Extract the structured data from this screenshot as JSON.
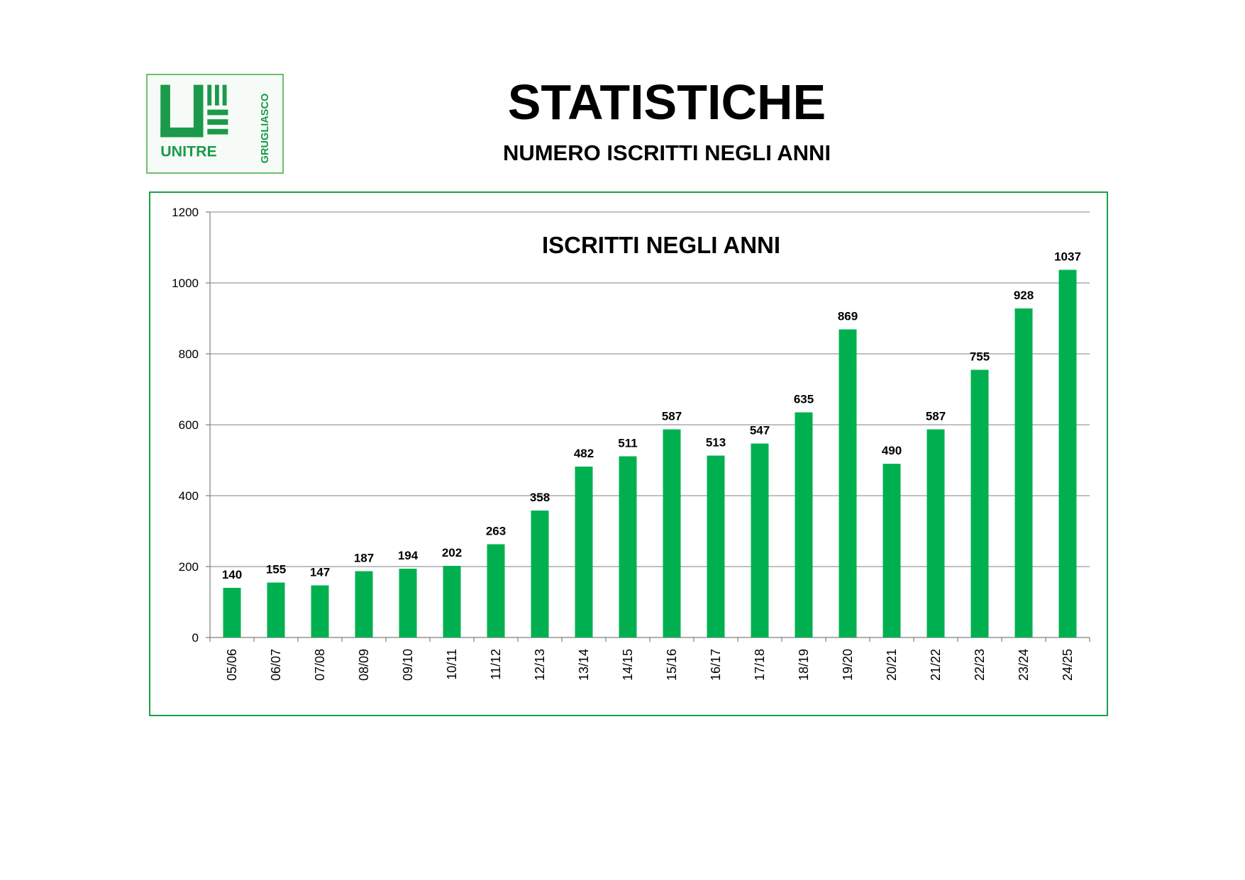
{
  "header": {
    "title": "STATISTICHE",
    "subtitle": "NUMERO ISCRITTI NEGLI ANNI"
  },
  "logo": {
    "name": "UNITRE",
    "location": "GRUGLIASCO",
    "color": "#1a9a4a"
  },
  "colors": {
    "bar": "#00b050",
    "frame": "#1aa049",
    "grid": "#9a9a9a"
  },
  "chart_data": {
    "type": "bar",
    "title": "ISCRITTI NEGLI ANNI",
    "xlabel": "",
    "ylabel": "",
    "ylim": [
      0,
      1200
    ],
    "yticks": [
      0,
      200,
      400,
      600,
      800,
      1000,
      1200
    ],
    "grid": true,
    "legend": "none",
    "categories": [
      "05/06",
      "06/07",
      "07/08",
      "08/09",
      "09/10",
      "10/11",
      "11/12",
      "12/13",
      "13/14",
      "14/15",
      "15/16",
      "16/17",
      "17/18",
      "18/19",
      "19/20",
      "20/21",
      "21/22",
      "22/23",
      "23/24",
      "24/25"
    ],
    "values": [
      140,
      155,
      147,
      187,
      194,
      202,
      263,
      358,
      482,
      511,
      587,
      513,
      547,
      635,
      869,
      490,
      587,
      755,
      928,
      1037
    ]
  }
}
